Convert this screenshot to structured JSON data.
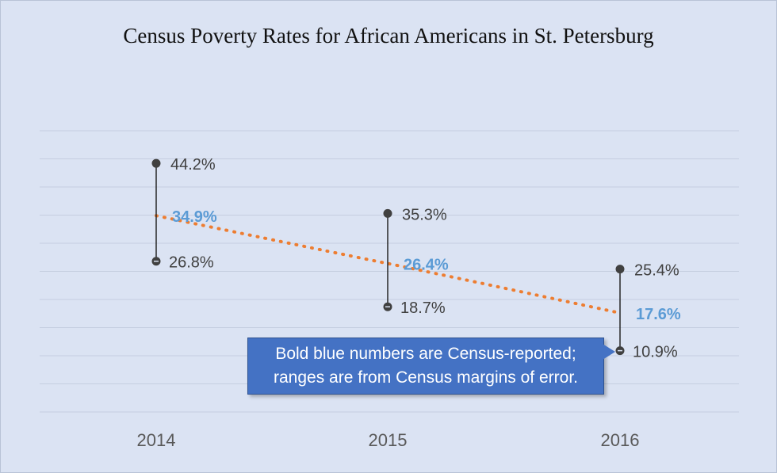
{
  "chart_data": {
    "type": "line",
    "title": "Census Poverty Rates for African Americans in St. Petersburg",
    "categories": [
      "2014",
      "2015",
      "2016"
    ],
    "ylim": [
      0,
      50
    ],
    "grid": true,
    "series": [
      {
        "role": "census-reported",
        "values": [
          34.9,
          26.4,
          17.6
        ],
        "labels": [
          "34.9%",
          "26.4%",
          "17.6%"
        ],
        "color": "#5b9bd5",
        "line_color": "#ed7d31",
        "line_style": "dotted"
      },
      {
        "role": "range-high",
        "values": [
          44.2,
          35.3,
          25.4
        ],
        "labels": [
          "44.2%",
          "35.3%",
          "25.4%"
        ],
        "color": "#404040"
      },
      {
        "role": "range-low",
        "values": [
          26.8,
          18.7,
          10.9
        ],
        "labels": [
          "26.8%",
          "18.7%",
          "10.9%"
        ],
        "color": "#404040"
      }
    ],
    "annotation": {
      "line1": "Bold blue numbers are Census-reported;",
      "line2": "ranges are from Census margins of error.",
      "color": "#4472c4"
    }
  }
}
